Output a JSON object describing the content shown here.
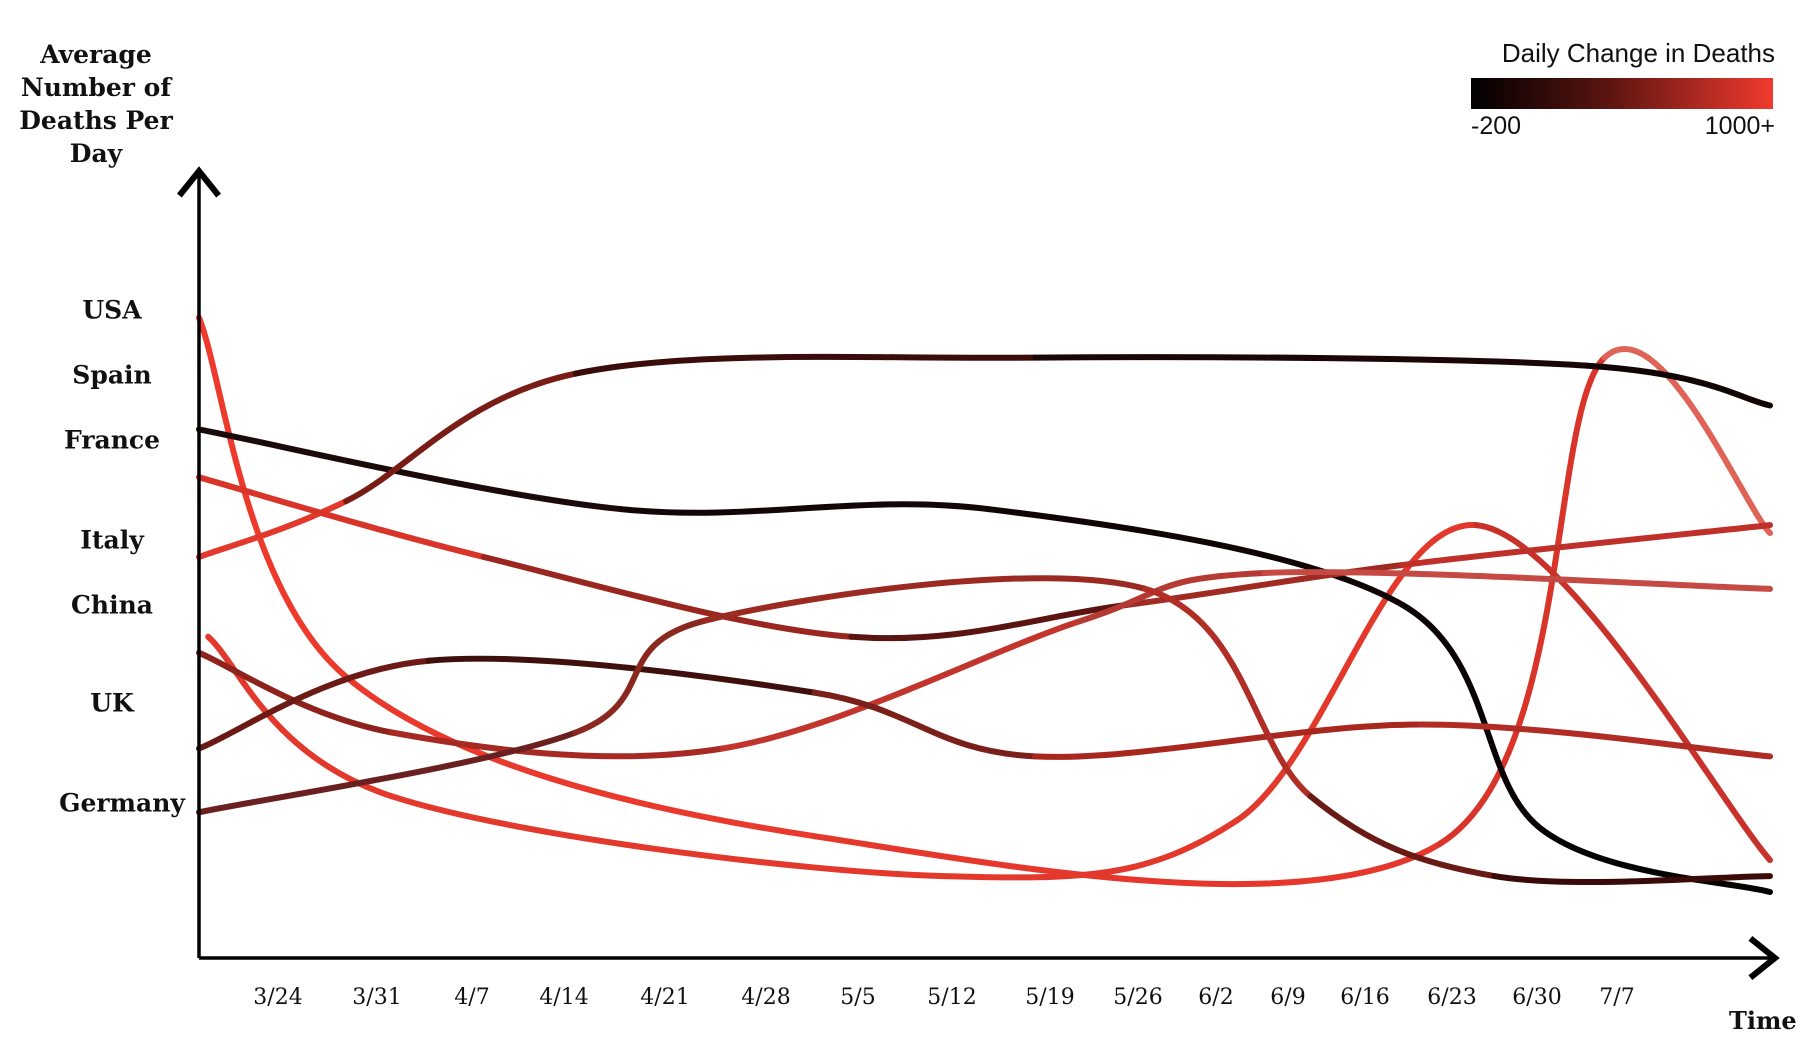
{
  "chart_data": {
    "type": "line",
    "title": "",
    "ylabel": "Average Number of Deaths Per Day",
    "xlabel": "Time",
    "y_categories": [
      "USA",
      "Spain",
      "France",
      "Italy",
      "China",
      "UK",
      "Germany"
    ],
    "x_ticks": [
      "3/24",
      "3/31",
      "4/7",
      "4/14",
      "4/21",
      "4/28",
      "5/5",
      "5/12",
      "5/19",
      "5/26",
      "6/2",
      "6/9",
      "6/16",
      "6/23",
      "6/30",
      "7/7"
    ],
    "legend": {
      "title": "Daily Change in Deaths",
      "min_label": "-200",
      "max_label": "1000+",
      "color_low": "#000000",
      "color_high": "#f03a2e"
    },
    "grid": false,
    "series": [
      {
        "color": "#ee3a2d",
        "points": [
          [
            2.9,
            7.4
          ],
          [
            4.5,
            2.9
          ],
          [
            9.6,
            0.9
          ],
          [
            16.4,
            0.8
          ],
          [
            18.2,
            6.9
          ],
          [
            20.0,
            4.7
          ]
        ],
        "stroke": [
          "#ee3a2d",
          "#e8392c",
          "#e5372b",
          "#d9342a",
          "#e06358",
          "#e86157"
        ]
      },
      {
        "color": "#e3392c",
        "points": [
          [
            3.0,
            3.4
          ],
          [
            5.0,
            1.4
          ],
          [
            11.0,
            0.4
          ],
          [
            14.2,
            1.1
          ],
          [
            16.8,
            4.8
          ],
          [
            20.0,
            0.6
          ]
        ],
        "stroke": [
          "#e3392c",
          "#e3392c",
          "#e3392c",
          "#e3392c",
          "#c9322a",
          "#e3392c"
        ]
      },
      {
        "color": "#1a0a0a",
        "points": [
          [
            2.9,
            6.0
          ],
          [
            7.5,
            5.0
          ],
          [
            11.5,
            5.0
          ],
          [
            16.0,
            3.8
          ],
          [
            17.5,
            1.0
          ],
          [
            20.0,
            0.2
          ]
        ],
        "stroke": [
          "#1a0a0a",
          "#120606",
          "#100505",
          "#0a0303",
          "#050202",
          "#050202"
        ]
      },
      {
        "color": "#e2392c",
        "points": [
          [
            2.9,
            4.4
          ],
          [
            4.5,
            5.1
          ],
          [
            7.0,
            6.7
          ],
          [
            12.0,
            6.9
          ],
          [
            18.0,
            6.8
          ],
          [
            20.0,
            6.3
          ]
        ],
        "stroke": [
          "#e2392c",
          "#7a1c16",
          "#3a0d0b",
          "#1a0606",
          "#100404",
          "#1a0505"
        ]
      },
      {
        "color": "#d9342a",
        "points": [
          [
            2.9,
            5.4
          ],
          [
            6.0,
            4.4
          ],
          [
            10.0,
            3.4
          ],
          [
            13.0,
            3.8
          ],
          [
            16.0,
            4.3
          ],
          [
            20.0,
            4.8
          ]
        ],
        "stroke": [
          "#d9342a",
          "#9a2620",
          "#5a1512",
          "#a12a22",
          "#c0302a",
          "#df3b2e"
        ]
      },
      {
        "color": "#8e221c",
        "points": [
          [
            2.9,
            3.2
          ],
          [
            5.0,
            2.2
          ],
          [
            8.6,
            2.0
          ],
          [
            12.5,
            3.6
          ],
          [
            14.5,
            4.2
          ],
          [
            20.0,
            4.0
          ]
        ],
        "stroke": [
          "#8e221c",
          "#a62a23",
          "#c2352c",
          "#b53a33",
          "#c64a44",
          "#e3564c"
        ]
      },
      {
        "color": "#6b1a16",
        "points": [
          [
            2.9,
            2.0
          ],
          [
            5.4,
            3.1
          ],
          [
            9.6,
            2.7
          ],
          [
            12.0,
            1.9
          ],
          [
            16.2,
            2.3
          ],
          [
            20.0,
            1.9
          ]
        ],
        "stroke": [
          "#6b1a16",
          "#3f0f0d",
          "#7a1f1a",
          "#a8281f",
          "#b02c24",
          "#c3302a"
        ]
      },
      {
        "color": "#6a2020",
        "points": [
          [
            2.9,
            1.2
          ],
          [
            7.0,
            2.2
          ],
          [
            8.4,
            3.6
          ],
          [
            13.2,
            4.0
          ],
          [
            15.0,
            1.4
          ],
          [
            17.0,
            0.4
          ],
          [
            20.0,
            0.4
          ]
        ],
        "stroke": [
          "#6a2020",
          "#8a2820",
          "#9a2a22",
          "#b02e26",
          "#6a1a14",
          "#3a0a08",
          "#9a2620"
        ]
      }
    ]
  }
}
